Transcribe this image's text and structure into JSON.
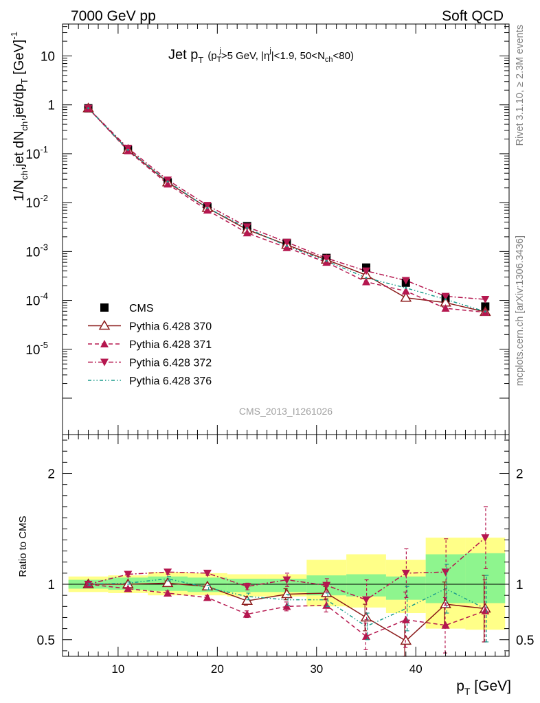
{
  "header": {
    "left": "7000 GeV pp",
    "right": "Soft QCD"
  },
  "side_labels": {
    "rivet": "Rivet 3.1.10, ≥ 2.3M events",
    "mcplots": "mcplots.cern.ch [arXiv:1306.3436]"
  },
  "watermark": "CMS_2013_I1261026",
  "chart_data": [
    {
      "type": "scatter",
      "panel": "main",
      "title": "Jet p_T (p_T^j>5 GeV, |η^j|<1.9, 50<N_ch<80)",
      "title_parts": {
        "main": "Jet p",
        "main_sub": "T",
        "paren_open": "(p",
        "p_sub": "T",
        "p_sup": "j",
        "after_p": ">5 GeV, |η",
        "eta_sup": "j",
        "after_eta": "|<1.9, 50<N",
        "n_sub": "ch",
        "close": "<80)"
      },
      "ylabel": "1/N_ch,jet dN_ch,jet/dp_T [GeV]^-1",
      "ylabel_parts": {
        "a": "1/N",
        "a_sub": "ch",
        "b": ",jet dN",
        "b_sub": "ch",
        "c": ",jet/dp",
        "c_sub": "T",
        "d": " [GeV]",
        "d_sup": "-1"
      },
      "yscale": "log",
      "ylim": [
        1.8e-07,
        45
      ],
      "xlim": [
        4.4,
        49.4
      ],
      "ytick_labels": [
        {
          "value": 1e-05,
          "base": "10",
          "exp": "-5"
        },
        {
          "value": 0.0001,
          "base": "10",
          "exp": "-4"
        },
        {
          "value": 0.001,
          "base": "10",
          "exp": "-3"
        },
        {
          "value": 0.01,
          "base": "10",
          "exp": "-2"
        },
        {
          "value": 0.1,
          "base": "10",
          "exp": "-1"
        },
        {
          "value": 1,
          "base": "1",
          "exp": ""
        },
        {
          "value": 10,
          "base": "10",
          "exp": ""
        }
      ],
      "legend_position": "bottom-left",
      "x": [
        7,
        11,
        15,
        19,
        23,
        27,
        31,
        35,
        39,
        43,
        47
      ],
      "series": [
        {
          "name": "CMS",
          "marker": "square",
          "color": "#000000",
          "line": "none",
          "values": [
            0.85,
            0.12,
            0.026,
            0.008,
            0.0033,
            0.0015,
            0.00074,
            0.00047,
            0.00023,
            0.00011,
            7.5e-05
          ]
        },
        {
          "name": "Pythia 6.428 370",
          "marker": "open-triangle-up",
          "color": "#8b1a1a",
          "line": "solid",
          "values": [
            0.85,
            0.12,
            0.026,
            0.0078,
            0.0028,
            0.00137,
            0.00068,
            0.00033,
            0.000113,
            9e-05,
            5.8e-05
          ]
        },
        {
          "name": "Pythia 6.428 371",
          "marker": "triangle-up",
          "color": "#b5174f",
          "line": "dashed",
          "values": [
            0.85,
            0.115,
            0.024,
            0.007,
            0.0024,
            0.0012,
            0.0006,
            0.00024,
            0.000155,
            6.9e-05,
            5.7e-05
          ]
        },
        {
          "name": "Pythia 6.428 372",
          "marker": "triangle-down",
          "color": "#b5174f",
          "line": "dashdot",
          "values": [
            0.85,
            0.13,
            0.029,
            0.0088,
            0.0032,
            0.00155,
            0.00073,
            0.0004,
            0.000256,
            0.000121,
            0.000105
          ]
        },
        {
          "name": "Pythia 6.428 376",
          "marker": "none",
          "color": "#1a9c8c",
          "line": "dashdotdot",
          "values": [
            0.85,
            0.12,
            0.027,
            0.0078,
            0.003,
            0.0013,
            0.00064,
            0.00029,
            0.00018,
            0.000105,
            5.9e-05
          ]
        }
      ]
    },
    {
      "type": "scatter",
      "panel": "ratio",
      "xlabel": "p_T [GeV]",
      "xlabel_parts": {
        "main": "p",
        "sub": "T",
        "unit": " [GeV]"
      },
      "ylabel": "Ratio to CMS",
      "ylim": [
        0.35,
        2.35
      ],
      "xlim": [
        4.4,
        49.4
      ],
      "xtick_labels": [
        "10",
        "20",
        "30",
        "40"
      ],
      "ytick_labels": [
        "0.5",
        "1",
        "2"
      ],
      "x": [
        7,
        11,
        15,
        19,
        23,
        27,
        31,
        35,
        39,
        43,
        47
      ],
      "bin_edges": [
        5,
        9,
        13,
        17,
        21,
        25,
        29,
        33,
        37,
        41,
        45,
        49
      ],
      "band_green": [
        [
          0.96,
          1.04
        ],
        [
          0.95,
          1.06
        ],
        [
          0.94,
          1.07
        ],
        [
          0.93,
          1.06
        ],
        [
          0.93,
          1.05
        ],
        [
          0.93,
          1.05
        ],
        [
          0.9,
          1.08
        ],
        [
          0.89,
          1.09
        ],
        [
          0.86,
          1.07
        ],
        [
          0.83,
          1.27
        ],
        [
          0.83,
          1.28
        ]
      ],
      "band_yellow": [
        [
          0.93,
          1.07
        ],
        [
          0.92,
          1.08
        ],
        [
          0.9,
          1.11
        ],
        [
          0.9,
          1.1
        ],
        [
          0.89,
          1.09
        ],
        [
          0.89,
          1.09
        ],
        [
          0.8,
          1.22
        ],
        [
          0.79,
          1.27
        ],
        [
          0.74,
          1.22
        ],
        [
          0.6,
          1.42
        ],
        [
          0.59,
          1.42
        ]
      ],
      "series": [
        {
          "name": "Pythia 6.428 370",
          "values": [
            1.0,
            1.0,
            1.01,
            0.98,
            0.85,
            0.91,
            0.92,
            0.7,
            0.49,
            0.82,
            0.78
          ],
          "err": [
            0.01,
            0.01,
            0.02,
            0.02,
            0.04,
            0.05,
            0.06,
            0.12,
            0.18,
            0.2,
            0.3
          ]
        },
        {
          "name": "Pythia 6.428 371",
          "values": [
            1.0,
            0.96,
            0.92,
            0.88,
            0.73,
            0.8,
            0.81,
            0.53,
            0.68,
            0.63,
            0.76
          ],
          "err": [
            0.01,
            0.01,
            0.02,
            0.02,
            0.03,
            0.04,
            0.06,
            0.12,
            0.25,
            0.25,
            0.28
          ]
        },
        {
          "name": "Pythia 6.428 372",
          "values": [
            1.0,
            1.09,
            1.11,
            1.1,
            0.98,
            1.04,
            0.99,
            0.86,
            1.1,
            1.11,
            1.42
          ],
          "err": [
            0.01,
            0.02,
            0.02,
            0.02,
            0.03,
            0.06,
            0.06,
            0.18,
            0.22,
            0.3,
            0.28
          ]
        },
        {
          "name": "Pythia 6.428 376",
          "values": [
            1.0,
            1.01,
            1.05,
            0.97,
            0.89,
            0.86,
            0.86,
            0.62,
            0.78,
            0.96,
            0.78
          ],
          "err": [
            0.01,
            0.01,
            0.02,
            0.02,
            0.03,
            0.05,
            0.06,
            0.12,
            0.2,
            0.22,
            0.3
          ]
        }
      ]
    }
  ]
}
